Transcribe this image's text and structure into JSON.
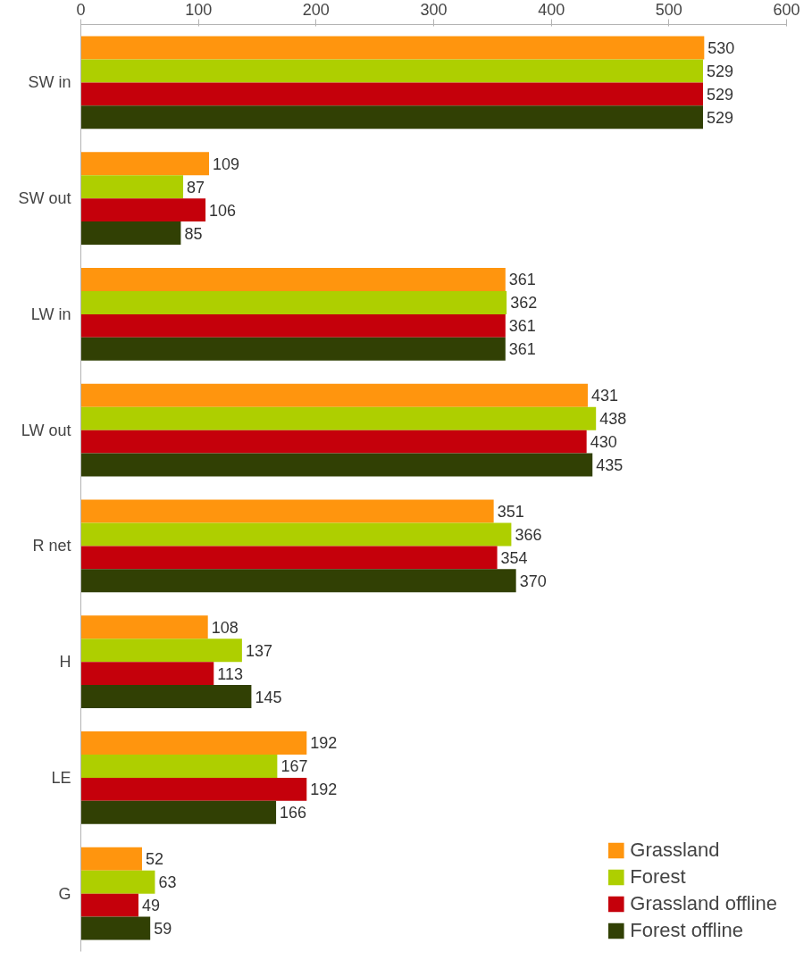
{
  "chart_data": {
    "type": "bar",
    "orientation": "horizontal",
    "categories": [
      "SW in",
      "SW out",
      "LW in",
      "LW out",
      "R net",
      "H",
      "LE",
      "G"
    ],
    "series": [
      {
        "name": "Grassland",
        "color": "#ff950e",
        "values": [
          530,
          109,
          361,
          431,
          351,
          108,
          192,
          52
        ]
      },
      {
        "name": "Forest",
        "color": "#aecf00",
        "values": [
          529,
          87,
          362,
          438,
          366,
          137,
          167,
          63
        ]
      },
      {
        "name": "Grassland offline",
        "color": "#c5000b",
        "values": [
          529,
          106,
          361,
          430,
          354,
          113,
          192,
          49
        ]
      },
      {
        "name": "Forest offline",
        "color": "#314004",
        "values": [
          529,
          85,
          361,
          435,
          370,
          145,
          166,
          59
        ]
      }
    ],
    "xlim": [
      0,
      600
    ],
    "xticks": [
      0,
      100,
      200,
      300,
      400,
      500,
      600
    ],
    "data_labels": true,
    "grid": false,
    "legend": "bottom right"
  }
}
